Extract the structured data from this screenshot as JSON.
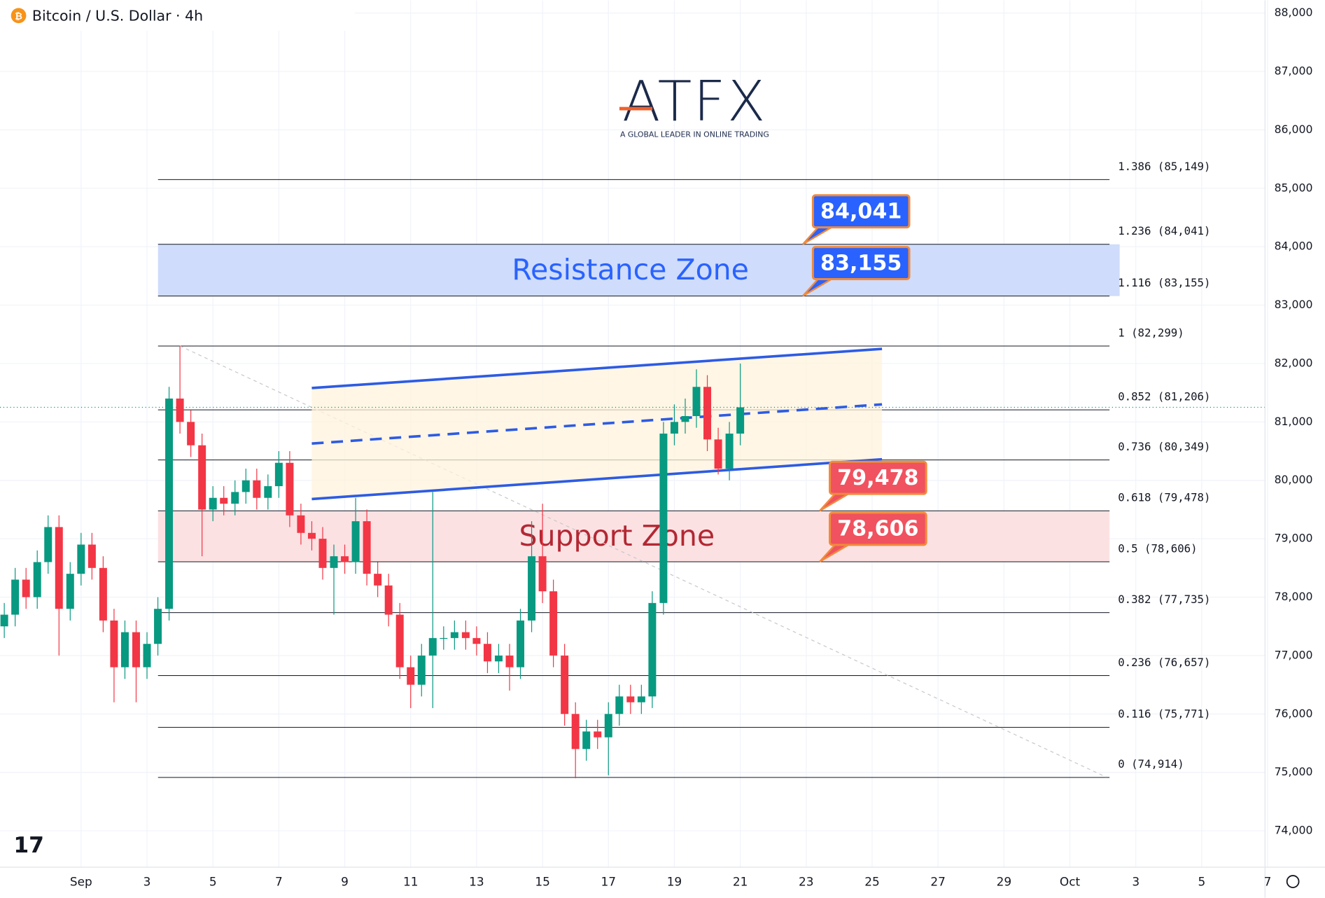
{
  "chart_data": {
    "type": "candlestick",
    "title": "Bitcoin / U.S. Dollar · 4h",
    "logo": {
      "name": "ATFX",
      "tagline": "A GLOBAL LEADER IN ONLINE TRADING"
    },
    "up_color": "#089981",
    "down_color": "#f23645",
    "x": [
      -1.33,
      -1,
      -0.67,
      -0.33,
      0,
      0.33,
      0.67,
      1,
      1.33,
      1.67,
      2,
      2.33,
      2.67,
      3,
      3.33,
      3.67,
      4,
      4.33,
      4.67,
      5,
      5.33,
      5.67,
      6,
      6.33,
      6.67,
      7,
      7.33,
      7.67,
      8,
      8.33,
      8.67,
      9,
      9.33,
      9.67,
      10,
      10.33,
      10.67,
      11,
      11.33,
      11.67,
      12,
      12.33,
      12.67,
      13,
      13.33,
      13.67,
      14,
      14.33,
      14.67,
      15,
      15.33,
      15.67,
      16,
      16.33,
      16.67,
      17,
      17.33,
      17.67,
      18,
      18.33,
      18.67,
      19,
      19.33,
      19.67,
      20,
      20.33,
      20.67,
      21
    ],
    "open": [
      77500,
      77700,
      78300,
      78000,
      78600,
      79200,
      77800,
      78400,
      78900,
      78500,
      77600,
      76800,
      77400,
      76800,
      77200,
      77800,
      81400,
      81000,
      80600,
      79500,
      79700,
      79600,
      79800,
      80000,
      79700,
      79900,
      80300,
      79400,
      79100,
      79000,
      78500,
      78700,
      78600,
      79300,
      78400,
      78200,
      77700,
      76800,
      76500,
      77000,
      77300,
      77300,
      77400,
      77300,
      77200,
      76900,
      77000,
      76800,
      77600,
      78700,
      78100,
      77000,
      76000,
      75400,
      75700,
      75600,
      76000,
      76300,
      76200,
      76300,
      77900,
      80800,
      81000,
      81100,
      81600,
      80700,
      80200,
      80800
    ],
    "high": [
      77900,
      78500,
      78500,
      78800,
      79400,
      79400,
      78600,
      79100,
      79100,
      78700,
      77800,
      77600,
      77600,
      77400,
      78000,
      81600,
      82300,
      81200,
      80800,
      79900,
      79900,
      80000,
      80200,
      80200,
      80100,
      80500,
      80500,
      79600,
      79300,
      79200,
      78900,
      78900,
      79700,
      79500,
      78600,
      78400,
      77900,
      77000,
      77200,
      79800,
      77500,
      77600,
      77600,
      77500,
      77400,
      77200,
      77200,
      77800,
      79300,
      79600,
      78300,
      77200,
      76200,
      75900,
      75900,
      76200,
      76500,
      76500,
      76500,
      78100,
      81000,
      81300,
      81400,
      81900,
      81800,
      80900,
      81000,
      82000
    ],
    "low": [
      77300,
      77500,
      77800,
      77800,
      78400,
      77000,
      77600,
      78200,
      78300,
      77400,
      76200,
      76600,
      76200,
      76600,
      77000,
      77600,
      80800,
      80400,
      78700,
      79300,
      79400,
      79400,
      79600,
      79500,
      79500,
      79700,
      79200,
      78900,
      78800,
      78300,
      77700,
      78400,
      78400,
      78200,
      78000,
      77500,
      76600,
      76100,
      76300,
      76100,
      77100,
      77100,
      77100,
      77000,
      76700,
      76700,
      76400,
      76600,
      77400,
      77900,
      76800,
      75800,
      74900,
      75200,
      75400,
      74950,
      75800,
      76000,
      76000,
      76100,
      77700,
      80600,
      80800,
      80900,
      80500,
      80100,
      80000,
      80600
    ],
    "close": [
      77700,
      78300,
      78000,
      78600,
      79200,
      77800,
      78400,
      78900,
      78500,
      77600,
      76800,
      77400,
      76800,
      77200,
      77800,
      81400,
      81000,
      80600,
      79500,
      79700,
      79600,
      79800,
      80000,
      79700,
      79900,
      80300,
      79400,
      79100,
      79000,
      78500,
      78700,
      78600,
      79300,
      78400,
      78200,
      77700,
      76800,
      76500,
      77000,
      77300,
      77300,
      77400,
      77300,
      77200,
      76900,
      77000,
      76800,
      77600,
      78700,
      78100,
      77000,
      76000,
      75400,
      75700,
      75600,
      76000,
      76300,
      76200,
      76300,
      77900,
      80800,
      81000,
      81100,
      81600,
      80700,
      80200,
      80800,
      81250
    ],
    "xlim": [
      -1.46,
      36.92
    ],
    "xticks": [
      {
        "value": 1,
        "label": "Sep"
      },
      3,
      5,
      7,
      9,
      11,
      13,
      15,
      17,
      19,
      21,
      23,
      25,
      27,
      29,
      {
        "value": 31,
        "label": "Oct"
      },
      {
        "value": 33,
        "label": "3"
      },
      {
        "value": 35,
        "label": "5"
      },
      {
        "value": 37,
        "label": "7"
      }
    ],
    "ylim": [
      73377,
      88217
    ],
    "yticks": [
      {
        "value": 74000,
        "label": "74,000"
      },
      {
        "value": 75000,
        "label": "75,000"
      },
      {
        "value": 76000,
        "label": "76,000"
      },
      {
        "value": 77000,
        "label": "77,000"
      },
      {
        "value": 78000,
        "label": "78,000"
      },
      {
        "value": 79000,
        "label": "79,000"
      },
      {
        "value": 80000,
        "label": "80,000"
      },
      {
        "value": 81000,
        "label": "81,000"
      },
      {
        "value": 82000,
        "label": "82,000"
      },
      {
        "value": 83000,
        "label": "83,000"
      },
      {
        "value": 84000,
        "label": "84,000"
      },
      {
        "value": 85000,
        "label": "85,000"
      },
      {
        "value": 86000,
        "label": "86,000"
      },
      {
        "value": 87000,
        "label": "87,000"
      },
      {
        "value": 88000,
        "label": "88,000"
      }
    ],
    "fib_levels": [
      {
        "label": "1.386 (85,149)",
        "value": 85149
      },
      {
        "label": "1.236 (84,041)",
        "value": 84041
      },
      {
        "label": "1.116 (83,155)",
        "value": 83155
      },
      {
        "label": "1 (82,299)",
        "value": 82299
      },
      {
        "label": "0.852 (81,206)",
        "value": 81206
      },
      {
        "label": "0.736 (80,349)",
        "value": 80349
      },
      {
        "label": "0.618 (79,478)",
        "value": 79478
      },
      {
        "label": "0.5 (78,606)",
        "value": 78606
      },
      {
        "label": "0.382 (77,735)",
        "value": 77735
      },
      {
        "label": "0.236 (76,657)",
        "value": 76657
      },
      {
        "label": "0.116 (75,771)",
        "value": 75771
      },
      {
        "label": "0 (74,914)",
        "value": 74914
      }
    ],
    "zones": [
      {
        "label": "Resistance Zone",
        "range": [
          83155,
          84041
        ],
        "color": "#cfdcfb",
        "text_color": "#2962ff"
      },
      {
        "label": "Support Zone",
        "range": [
          78606,
          79478
        ],
        "color": "#fce1e3",
        "text_color": "#b22833"
      }
    ],
    "callouts": [
      {
        "label": "84,041",
        "value": 84041,
        "color": "#2962ff"
      },
      {
        "label": "83,155",
        "value": 83155,
        "color": "#2962ff"
      },
      {
        "label": "79,478",
        "value": 79478,
        "color": "#f0525f"
      },
      {
        "label": "78,606",
        "value": 78606,
        "color": "#f0525f"
      }
    ],
    "channel": {
      "x": [
        8,
        25.3
      ],
      "upper": [
        81580,
        82250
      ],
      "middle": [
        80630,
        81300
      ],
      "lower": [
        79680,
        80360
      ],
      "color": "#2d5be3"
    },
    "trendline": {
      "x": [
        4,
        32.1
      ],
      "y": [
        82300,
        74920
      ]
    }
  }
}
